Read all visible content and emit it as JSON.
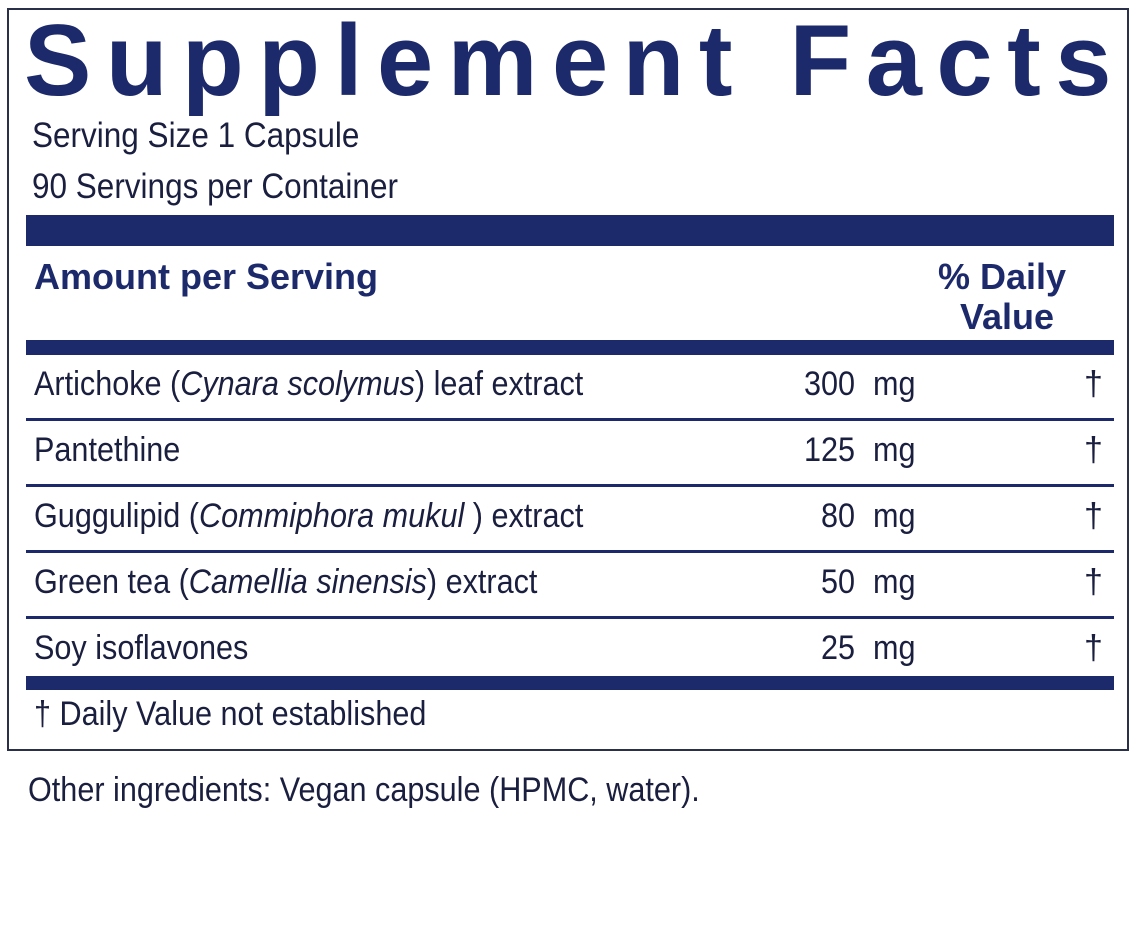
{
  "title": "Supplement Facts",
  "serving_size": "Serving Size 1 Capsule",
  "servings_per_container": "90 Servings per Container",
  "header": {
    "amount": "Amount per Serving",
    "dv_line1": "% Daily",
    "dv_line2": "Value"
  },
  "rows": [
    {
      "pre": "Artichoke (",
      "latin": "Cynara scolymus",
      "post": ") leaf extract",
      "amount": "300",
      "unit": "mg",
      "dv": "†"
    },
    {
      "pre": "Pantethine",
      "latin": "",
      "post": "",
      "amount": "125",
      "unit": "mg",
      "dv": "†"
    },
    {
      "pre": "Guggulipid (",
      "latin": "Commiphora mukul",
      "post": " ) extract",
      "amount": "80",
      "unit": "mg",
      "dv": "†"
    },
    {
      "pre": "Green tea (",
      "latin": "Camellia sinensis",
      "post": ") extract",
      "amount": "50",
      "unit": "mg",
      "dv": "†"
    },
    {
      "pre": "Soy isoflavones",
      "latin": "",
      "post": "",
      "amount": "25",
      "unit": "mg",
      "dv": "†"
    }
  ],
  "footnote": "†  Daily Value not established",
  "other_ingredients": "Other ingredients: Vegan capsule (HPMC, water).",
  "colors": {
    "navy": "#1c2a6b",
    "text": "#1b1f3f"
  }
}
